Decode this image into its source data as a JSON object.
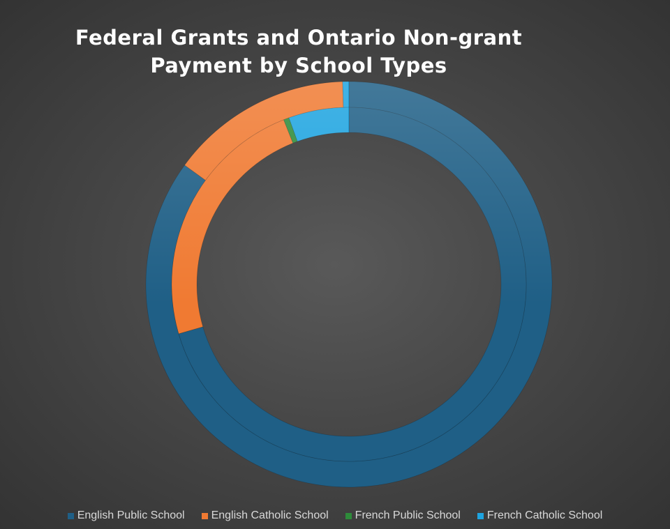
{
  "chart_data": {
    "type": "donut",
    "title": [
      "Federal Grants and Ontario Non-grant",
      "Payment by School Types"
    ],
    "categories": [
      "English Public School",
      "English Catholic School",
      "French Public School",
      "French Catholic School"
    ],
    "colors": [
      "#1f5f86",
      "#f07a32",
      "#2e8b3a",
      "#1ea4e0"
    ],
    "series": [
      {
        "values": [
          85.0,
          14.5,
          0.0,
          0.5
        ]
      },
      {
        "values": [
          70.5,
          23.5,
          0.5,
          5.5
        ]
      }
    ],
    "legend_position": "bottom"
  }
}
